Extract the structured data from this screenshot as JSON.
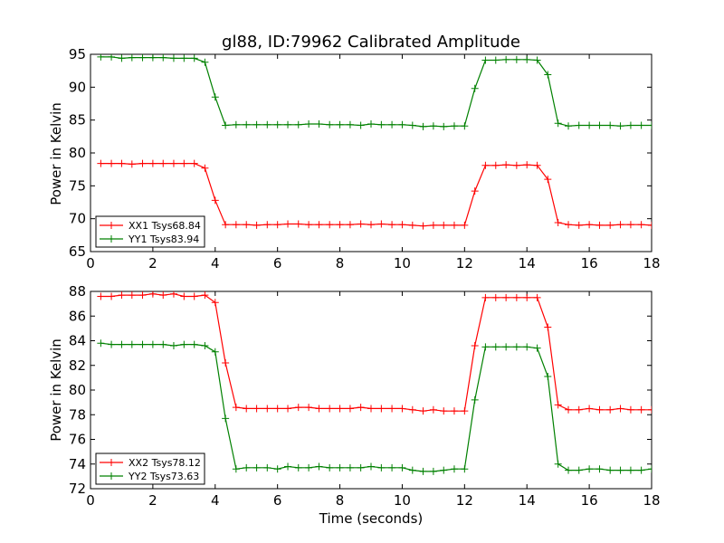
{
  "chart_data": [
    {
      "type": "line",
      "title": "gl88, ID:79962 Calibrated Amplitude",
      "xlabel": "",
      "ylabel": "Power in Kelvin",
      "xlim": [
        0,
        18
      ],
      "ylim": [
        65,
        95
      ],
      "xticks": [
        0,
        2,
        4,
        6,
        8,
        10,
        12,
        14,
        16,
        18
      ],
      "yticks": [
        65,
        70,
        75,
        80,
        85,
        90,
        95
      ],
      "legend": "lower-left",
      "grid": false,
      "x": [
        0.33,
        0.67,
        1.0,
        1.33,
        1.67,
        2.0,
        2.33,
        2.67,
        3.0,
        3.33,
        3.67,
        4.0,
        4.33,
        4.67,
        5.0,
        5.33,
        5.67,
        6.0,
        6.33,
        6.67,
        7.0,
        7.33,
        7.67,
        8.0,
        8.33,
        8.67,
        9.0,
        9.33,
        9.67,
        10.0,
        10.33,
        10.67,
        11.0,
        11.33,
        11.67,
        12.0,
        12.33,
        12.67,
        13.0,
        13.33,
        13.67,
        14.0,
        14.33,
        14.67,
        15.0,
        15.33,
        15.67,
        16.0,
        16.33,
        16.67,
        17.0,
        17.33,
        17.67,
        18.0
      ],
      "series": [
        {
          "name": "XX1 Tsys68.84",
          "color": "#ff0000",
          "values": [
            78.4,
            78.4,
            78.4,
            78.3,
            78.4,
            78.4,
            78.4,
            78.4,
            78.4,
            78.4,
            77.7,
            72.8,
            69.1,
            69.1,
            69.1,
            69.0,
            69.1,
            69.1,
            69.2,
            69.2,
            69.1,
            69.1,
            69.1,
            69.1,
            69.1,
            69.2,
            69.1,
            69.2,
            69.1,
            69.1,
            69.0,
            68.9,
            69.0,
            69.0,
            69.0,
            69.0,
            74.2,
            78.1,
            78.1,
            78.2,
            78.1,
            78.2,
            78.1,
            76.0,
            69.4,
            69.1,
            69.0,
            69.1,
            69.0,
            69.0,
            69.1,
            69.1,
            69.1,
            69.0
          ]
        },
        {
          "name": "YY1 Tsys83.94",
          "color": "#008000",
          "values": [
            94.6,
            94.6,
            94.4,
            94.5,
            94.5,
            94.5,
            94.5,
            94.4,
            94.4,
            94.4,
            93.8,
            88.5,
            84.2,
            84.3,
            84.3,
            84.3,
            84.3,
            84.3,
            84.3,
            84.3,
            84.4,
            84.4,
            84.3,
            84.3,
            84.3,
            84.2,
            84.4,
            84.3,
            84.3,
            84.3,
            84.2,
            84.0,
            84.1,
            84.0,
            84.1,
            84.1,
            89.8,
            94.1,
            94.1,
            94.2,
            94.2,
            94.2,
            94.1,
            91.9,
            84.5,
            84.1,
            84.2,
            84.2,
            84.2,
            84.2,
            84.1,
            84.2,
            84.2,
            84.2
          ]
        }
      ]
    },
    {
      "type": "line",
      "title": "",
      "xlabel": "Time (seconds)",
      "ylabel": "Power in Kelvin",
      "xlim": [
        0,
        18
      ],
      "ylim": [
        72,
        88
      ],
      "xticks": [
        0,
        2,
        4,
        6,
        8,
        10,
        12,
        14,
        16,
        18
      ],
      "yticks": [
        72,
        74,
        76,
        78,
        80,
        82,
        84,
        86,
        88
      ],
      "legend": "lower-left",
      "grid": false,
      "x": [
        0.33,
        0.67,
        1.0,
        1.33,
        1.67,
        2.0,
        2.33,
        2.67,
        3.0,
        3.33,
        3.67,
        4.0,
        4.33,
        4.67,
        5.0,
        5.33,
        5.67,
        6.0,
        6.33,
        6.67,
        7.0,
        7.33,
        7.67,
        8.0,
        8.33,
        8.67,
        9.0,
        9.33,
        9.67,
        10.0,
        10.33,
        10.67,
        11.0,
        11.33,
        11.67,
        12.0,
        12.33,
        12.67,
        13.0,
        13.33,
        13.67,
        14.0,
        14.33,
        14.67,
        15.0,
        15.33,
        15.67,
        16.0,
        16.33,
        16.67,
        17.0,
        17.33,
        17.67,
        18.0
      ],
      "series": [
        {
          "name": "XX2 Tsys78.12",
          "color": "#ff0000",
          "values": [
            87.6,
            87.6,
            87.7,
            87.7,
            87.7,
            87.8,
            87.7,
            87.8,
            87.6,
            87.6,
            87.7,
            87.1,
            82.2,
            78.6,
            78.5,
            78.5,
            78.5,
            78.5,
            78.5,
            78.6,
            78.6,
            78.5,
            78.5,
            78.5,
            78.5,
            78.6,
            78.5,
            78.5,
            78.5,
            78.5,
            78.4,
            78.3,
            78.4,
            78.3,
            78.3,
            78.3,
            83.6,
            87.5,
            87.5,
            87.5,
            87.5,
            87.5,
            87.5,
            85.1,
            78.8,
            78.4,
            78.4,
            78.5,
            78.4,
            78.4,
            78.5,
            78.4,
            78.4,
            78.4
          ]
        },
        {
          "name": "YY2 Tsys73.63",
          "color": "#008000",
          "values": [
            83.8,
            83.7,
            83.7,
            83.7,
            83.7,
            83.7,
            83.7,
            83.6,
            83.7,
            83.7,
            83.6,
            83.1,
            77.7,
            73.6,
            73.7,
            73.7,
            73.7,
            73.6,
            73.8,
            73.7,
            73.7,
            73.8,
            73.7,
            73.7,
            73.7,
            73.7,
            73.8,
            73.7,
            73.7,
            73.7,
            73.5,
            73.4,
            73.4,
            73.5,
            73.6,
            73.6,
            79.2,
            83.5,
            83.5,
            83.5,
            83.5,
            83.5,
            83.4,
            81.1,
            74.0,
            73.5,
            73.5,
            73.6,
            73.6,
            73.5,
            73.5,
            73.5,
            73.5,
            73.6
          ]
        }
      ]
    }
  ]
}
